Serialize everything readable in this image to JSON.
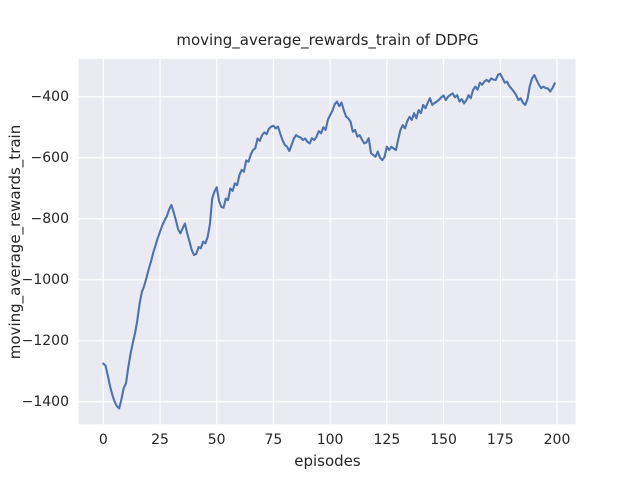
{
  "figure": {
    "title": "moving_average_rewards_train of DDPG",
    "xlabel": "episodes",
    "ylabel": "moving_average_rewards_train"
  },
  "chart_data": {
    "type": "line",
    "title": "moving_average_rewards_train of DDPG",
    "xlabel": "episodes",
    "ylabel": "moving_average_rewards_train",
    "style": "seaborn-darkgrid",
    "grid": true,
    "legend": "none",
    "x_tick_values": [
      0,
      25,
      50,
      75,
      100,
      125,
      150,
      175,
      200
    ],
    "x_tick_labels": [
      "0",
      "25",
      "50",
      "75",
      "100",
      "125",
      "150",
      "175",
      "200"
    ],
    "y_tick_values": [
      -400,
      -600,
      -800,
      -1000,
      -1200,
      -1400
    ],
    "y_tick_labels": [
      "−400",
      "−600",
      "−800",
      "−1000",
      "−1200",
      "−1400"
    ],
    "xlim": [
      -10.7,
      208.2
    ],
    "ylim": [
      -1474,
      -276
    ],
    "colors": {
      "line": "#4C72B0",
      "plot_background": "#EAEAF2",
      "grid": "#FFFFFF",
      "text": "#262626",
      "figure_background": "#FFFFFF"
    },
    "series": [
      {
        "name": "moving_average_rewards_train",
        "x": [
          0,
          1,
          2,
          3,
          4,
          5,
          6,
          7,
          8,
          9,
          10,
          11,
          12,
          13,
          14,
          15,
          16,
          17,
          18,
          19,
          20,
          21,
          22,
          23,
          24,
          25,
          26,
          27,
          28,
          29,
          30,
          31,
          32,
          33,
          34,
          35,
          36,
          37,
          38,
          39,
          40,
          41,
          42,
          43,
          44,
          45,
          46,
          47,
          48,
          49,
          50,
          51,
          52,
          53,
          54,
          55,
          56,
          57,
          58,
          59,
          60,
          61,
          62,
          63,
          64,
          65,
          66,
          67,
          68,
          69,
          70,
          71,
          72,
          73,
          74,
          75,
          76,
          77,
          78,
          79,
          80,
          81,
          82,
          83,
          84,
          85,
          86,
          87,
          88,
          89,
          90,
          91,
          92,
          93,
          94,
          95,
          96,
          97,
          98,
          99,
          100,
          101,
          102,
          103,
          104,
          105,
          106,
          107,
          108,
          109,
          110,
          111,
          112,
          113,
          114,
          115,
          116,
          117,
          118,
          119,
          120,
          121,
          122,
          123,
          124,
          125,
          126,
          127,
          128,
          129,
          130,
          131,
          132,
          133,
          134,
          135,
          136,
          137,
          138,
          139,
          140,
          141,
          142,
          143,
          144,
          145,
          146,
          147,
          148,
          149,
          150,
          151,
          152,
          153,
          154,
          155,
          156,
          157,
          158,
          159,
          160,
          161,
          162,
          163,
          164,
          165,
          166,
          167,
          168,
          169,
          170,
          171,
          172,
          173,
          174,
          175,
          176,
          177,
          178,
          179,
          180,
          181,
          182,
          183,
          184,
          185,
          186,
          187,
          188,
          189,
          190,
          191,
          192,
          193,
          194,
          195,
          196,
          197,
          198,
          199
        ],
        "y": [
          -1275,
          -1282,
          -1315,
          -1350,
          -1378,
          -1400,
          -1415,
          -1422,
          -1392,
          -1355,
          -1340,
          -1288,
          -1243,
          -1208,
          -1175,
          -1133,
          -1078,
          -1040,
          -1021,
          -995,
          -966,
          -941,
          -912,
          -888,
          -864,
          -843,
          -822,
          -806,
          -792,
          -770,
          -755,
          -778,
          -805,
          -835,
          -848,
          -831,
          -816,
          -848,
          -875,
          -903,
          -919,
          -915,
          -893,
          -897,
          -875,
          -881,
          -860,
          -818,
          -734,
          -711,
          -697,
          -741,
          -761,
          -764,
          -734,
          -739,
          -701,
          -709,
          -684,
          -690,
          -657,
          -640,
          -646,
          -609,
          -613,
          -590,
          -575,
          -569,
          -537,
          -545,
          -526,
          -517,
          -523,
          -505,
          -498,
          -495,
          -504,
          -498,
          -521,
          -542,
          -558,
          -564,
          -578,
          -558,
          -537,
          -526,
          -531,
          -534,
          -542,
          -537,
          -548,
          -553,
          -536,
          -542,
          -531,
          -513,
          -520,
          -500,
          -509,
          -476,
          -460,
          -446,
          -425,
          -416,
          -431,
          -419,
          -444,
          -465,
          -471,
          -482,
          -515,
          -509,
          -531,
          -526,
          -540,
          -553,
          -550,
          -536,
          -585,
          -591,
          -597,
          -580,
          -600,
          -608,
          -597,
          -564,
          -575,
          -564,
          -570,
          -575,
          -540,
          -509,
          -493,
          -504,
          -480,
          -466,
          -476,
          -454,
          -471,
          -444,
          -454,
          -427,
          -438,
          -420,
          -405,
          -427,
          -421,
          -416,
          -410,
          -402,
          -396,
          -411,
          -400,
          -394,
          -389,
          -402,
          -395,
          -416,
          -408,
          -422,
          -412,
          -395,
          -405,
          -378,
          -367,
          -377,
          -354,
          -361,
          -350,
          -345,
          -351,
          -340,
          -344,
          -345,
          -328,
          -325,
          -340,
          -354,
          -351,
          -365,
          -374,
          -383,
          -395,
          -411,
          -405,
          -420,
          -427,
          -408,
          -365,
          -340,
          -329,
          -345,
          -360,
          -372,
          -367,
          -372,
          -373,
          -383,
          -372,
          -356
        ]
      }
    ]
  }
}
